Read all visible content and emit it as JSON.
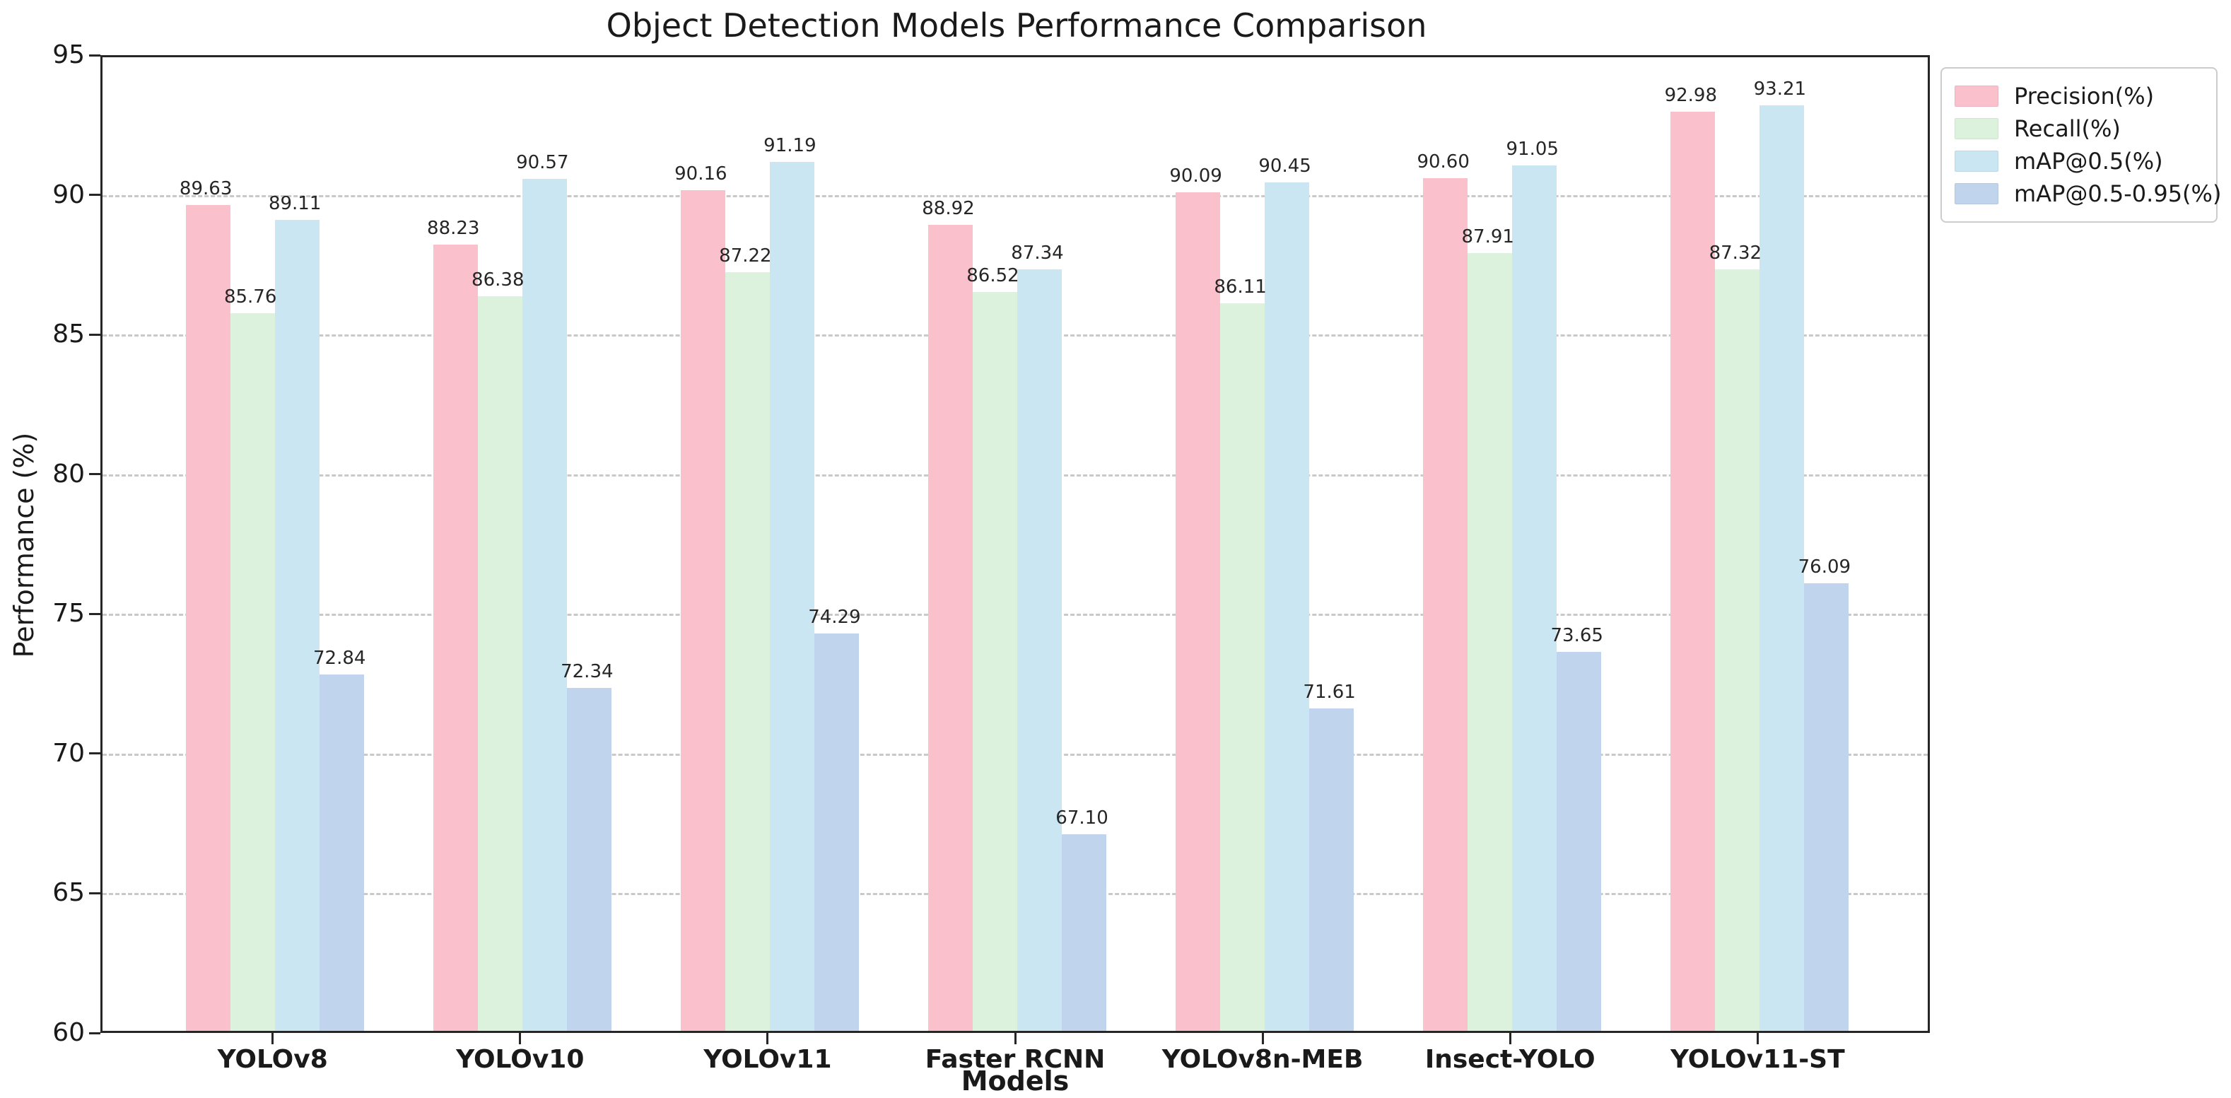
{
  "chart_data": {
    "type": "bar",
    "title": "Object Detection Models Performance Comparison",
    "xlabel": "Models",
    "ylabel": "Performance (%)",
    "ylim": [
      60,
      95
    ],
    "yticks": [
      60,
      65,
      70,
      75,
      80,
      85,
      90,
      95
    ],
    "grid": "horizontal-dashed",
    "grid_color": "#c9c9c9",
    "legend_position": "upper-right-outside",
    "categories": [
      "YOLOv8",
      "YOLOv10",
      "YOLOv11",
      "Faster RCNN",
      "YOLOv8n-MEB",
      "Insect-YOLO",
      "YOLOv11-ST"
    ],
    "series": [
      {
        "name": "Precision(%)",
        "color": "#FAC1CC",
        "values": [
          89.63,
          88.23,
          90.16,
          88.92,
          90.09,
          90.6,
          92.98
        ],
        "labels": [
          "89.63",
          "88.23",
          "90.16",
          "88.92",
          "90.09",
          "90.60",
          "92.98"
        ]
      },
      {
        "name": "Recall(%)",
        "color": "#DDF2DD",
        "values": [
          85.76,
          86.38,
          87.22,
          86.52,
          86.11,
          87.91,
          87.32
        ],
        "labels": [
          "85.76",
          "86.38",
          "87.22",
          "86.52",
          "86.11",
          "87.91",
          "87.32"
        ]
      },
      {
        "name": "mAP@0.5(%)",
        "color": "#CBE6F3",
        "values": [
          89.11,
          90.57,
          91.19,
          87.34,
          90.45,
          91.05,
          93.21
        ],
        "labels": [
          "89.11",
          "90.57",
          "91.19",
          "87.34",
          "90.45",
          "91.05",
          "93.21"
        ]
      },
      {
        "name": "mAP@0.5-0.95(%)",
        "color": "#C1D4EE",
        "values": [
          72.84,
          72.34,
          74.29,
          67.1,
          71.61,
          73.65,
          76.09
        ],
        "labels": [
          "72.84",
          "72.34",
          "74.29",
          "67.10",
          "71.61",
          "73.65",
          "76.09"
        ]
      }
    ]
  }
}
